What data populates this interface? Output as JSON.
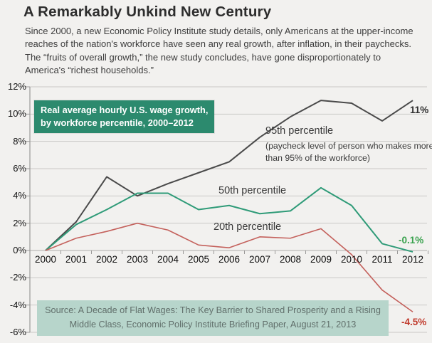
{
  "header": {
    "title": "A Remarkably Unkind New Century",
    "subtitle": "Since 2000, a new Economic Policy Institute study details, only Americans at the upper-income reaches of the nation's workforce have seen any real growth, after inflation, in their paychecks. The “fruits of overall growth,” the new study concludes, have gone disproportionately to America's “richest households.”"
  },
  "chart_data": {
    "type": "line",
    "label_box": {
      "line1": "Real average hourly U.S. wage growth,",
      "line2": "by workforce percentile, 2000–2012",
      "bg": "#2c8a6e",
      "text_color": "#ffffff"
    },
    "x": [
      2000,
      2001,
      2002,
      2003,
      2004,
      2005,
      2006,
      2007,
      2008,
      2009,
      2010,
      2011,
      2012
    ],
    "series": [
      {
        "name": "95th percentile",
        "note": "(paycheck level of person who makes more than 95% of the workforce)",
        "color": "#4a4a4a",
        "label_color": "#2f2f2f",
        "end_label": "11%",
        "values": [
          0,
          2.1,
          5.4,
          4.0,
          4.9,
          5.7,
          6.5,
          8.3,
          9.8,
          11.0,
          10.8,
          9.5,
          11.0
        ]
      },
      {
        "name": "50th percentile",
        "color": "#2f9b78",
        "label_color": "#3aa24e",
        "end_label": "-0.1%",
        "values": [
          0,
          1.9,
          3.0,
          4.2,
          4.2,
          3.0,
          3.3,
          2.7,
          2.9,
          4.6,
          3.3,
          0.5,
          -0.1
        ]
      },
      {
        "name": "20th percentile",
        "color": "#c4615c",
        "label_color": "#c0392b",
        "end_label": "-4.5%",
        "values": [
          0,
          0.9,
          1.4,
          2.0,
          1.5,
          0.4,
          0.2,
          1.0,
          0.9,
          1.6,
          -0.3,
          -2.9,
          -4.5
        ]
      }
    ],
    "ylim": [
      -6,
      12
    ],
    "ytick_step": 2,
    "ytick_suffix": "%",
    "grid": true,
    "legend_position": "inline-annotations",
    "colors": {
      "grid": "#c9c8c6",
      "zero_line": "#aeadab",
      "axis": "#9a9998",
      "background": "#f2f1ef"
    }
  },
  "source": {
    "text": "Source: A Decade of Flat Wages: The Key Barrier to Shared Prosperity and a Rising Middle Class, Economic Policy Institute Briefing Paper, August 21, 2013"
  }
}
